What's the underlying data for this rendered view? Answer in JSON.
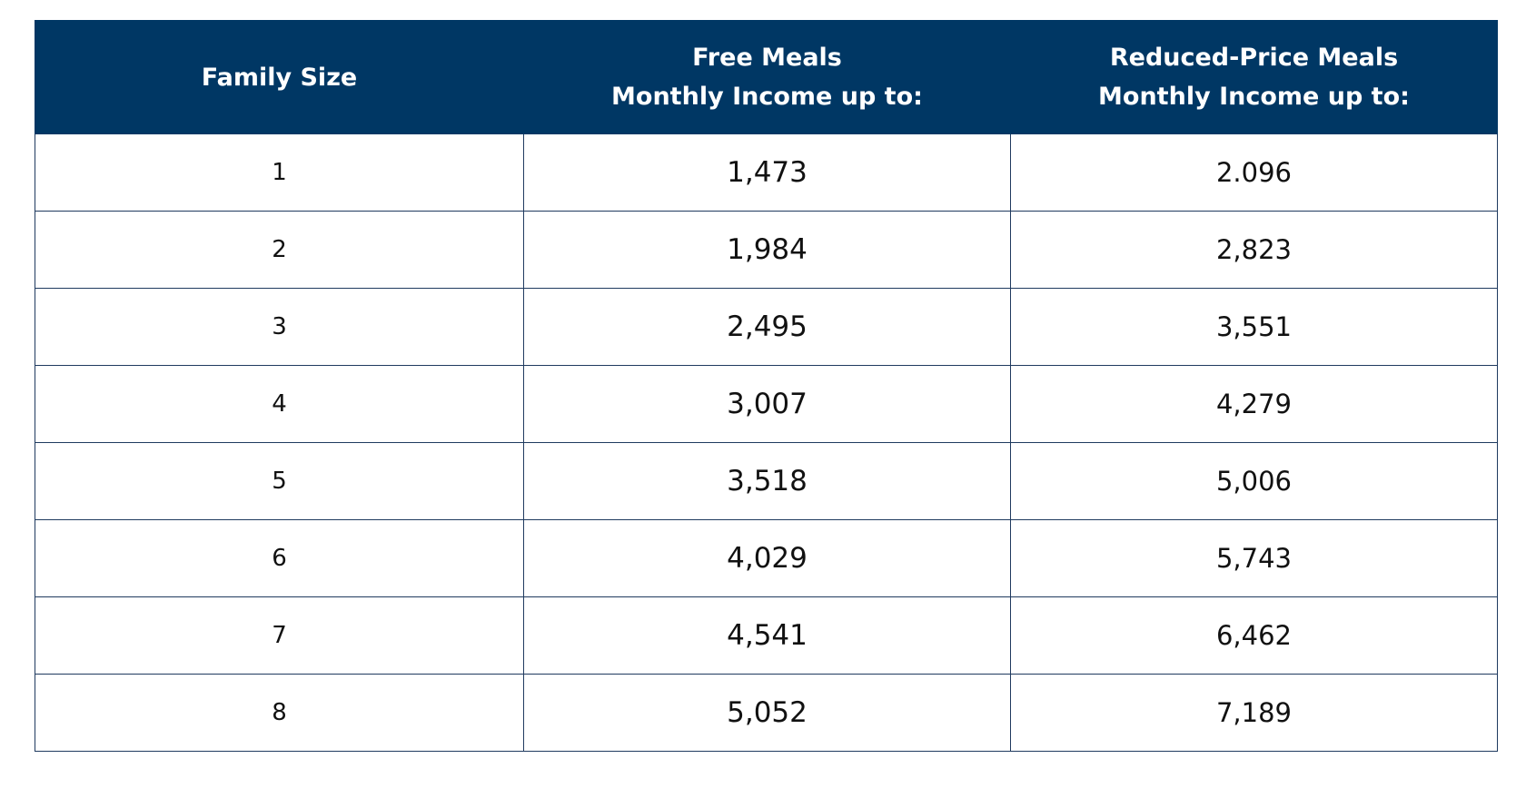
{
  "table": {
    "headers": {
      "family_size": "Family Size",
      "free_line1": "Free Meals",
      "free_line2": "Monthly Income up to:",
      "reduced_line1": "Reduced-Price Meals",
      "reduced_line2": "Monthly Income up to:"
    },
    "rows": [
      {
        "size": "1",
        "free": "1,473",
        "reduced": "2.096"
      },
      {
        "size": "2",
        "free": "1,984",
        "reduced": "2,823"
      },
      {
        "size": "3",
        "free": "2,495",
        "reduced": "3,551"
      },
      {
        "size": "4",
        "free": "3,007",
        "reduced": "4,279"
      },
      {
        "size": "5",
        "free": "3,518",
        "reduced": "5,006"
      },
      {
        "size": "6",
        "free": "4,029",
        "reduced": "5,743"
      },
      {
        "size": "7",
        "free": "4,541",
        "reduced": "6,462"
      },
      {
        "size": "8",
        "free": "5,052",
        "reduced": "7,189"
      }
    ]
  },
  "colors": {
    "header_background": "#003764",
    "header_text": "#ffffff",
    "border": "#1f3a5f"
  }
}
